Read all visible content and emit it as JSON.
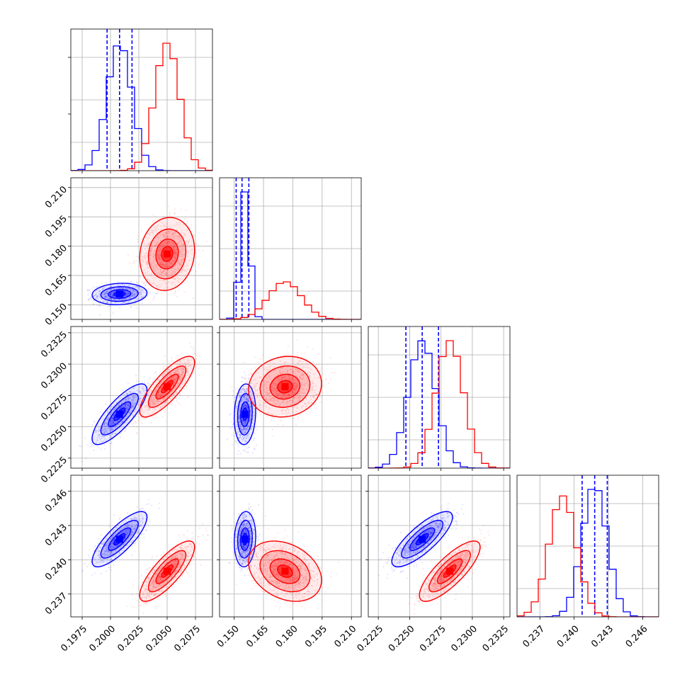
{
  "chart_data": {
    "type": "corner",
    "title": "",
    "grid": true,
    "colors": {
      "blue": "#0000ff",
      "red": "#ff0000"
    },
    "parameters": [
      {
        "xlim": [
          0.1965,
          0.209
        ],
        "ticks": [
          "0.1975",
          "0.2000",
          "0.2025",
          "0.2050",
          "0.2075"
        ]
      },
      {
        "xlim": [
          0.1425,
          0.215
        ],
        "ticks": [
          "0.150",
          "0.165",
          "0.180",
          "0.195",
          "0.210"
        ]
      },
      {
        "xlim": [
          0.2217,
          0.233
        ],
        "ticks": [
          "0.2225",
          "0.2250",
          "0.2275",
          "0.2300",
          "0.2325"
        ]
      },
      {
        "xlim": [
          0.235,
          0.2474
        ],
        "ticks": [
          "0.237",
          "0.240",
          "0.243",
          "0.246"
        ]
      }
    ],
    "series": [
      {
        "color": "#0000ff",
        "mean": [
          0.2008,
          0.1555,
          0.226,
          0.2418
        ],
        "sd": [
          0.0011,
          0.0025,
          0.0011,
          0.0011
        ],
        "corr": [
          [
            1,
            0.1,
            0.8,
            0.8
          ],
          [
            0.1,
            1,
            0.1,
            0.1
          ],
          [
            0.8,
            0.1,
            1,
            0.8
          ],
          [
            0.8,
            0.1,
            0.8,
            1
          ]
        ],
        "quantiles": [
          [
            0.1997,
            0.2008,
            0.2019
          ],
          [
            0.151,
            0.154,
            0.1575
          ],
          [
            0.2247,
            0.226,
            0.2273
          ],
          [
            0.2407,
            0.2418,
            0.2429
          ]
        ]
      },
      {
        "color": "#ff0000",
        "mean": [
          0.205,
          0.176,
          0.2282,
          0.239
        ],
        "sd": [
          0.0011,
          0.0085,
          0.0011,
          0.0012
        ],
        "corr": [
          [
            1,
            0.1,
            0.8,
            0.8
          ],
          [
            0.1,
            1,
            0.1,
            -0.3
          ],
          [
            0.8,
            0.1,
            1,
            0.8
          ],
          [
            0.8,
            -0.3,
            0.8,
            1
          ]
        ],
        "quantiles": []
      }
    ]
  }
}
